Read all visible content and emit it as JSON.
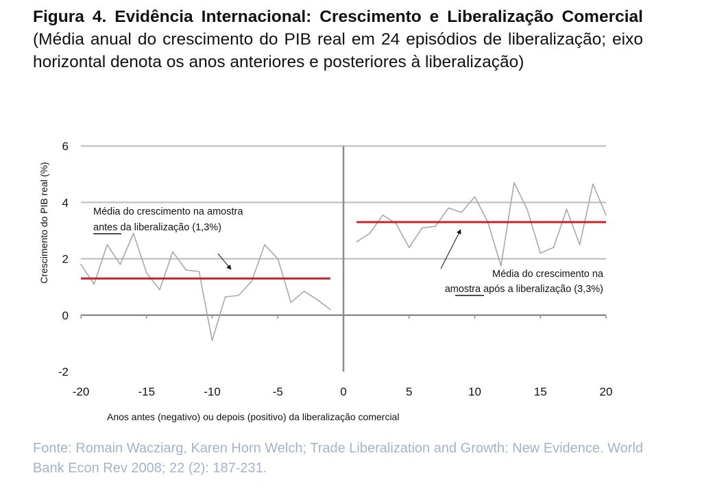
{
  "title": {
    "bold": "Figura 4. Evidência Internacional: Crescimento e Liberalização Comercial",
    "rest": " (Média anual do crescimento do PIB real em 24 episódios de liberalização; eixo horizontal denota os anos anteriores e posteriores à liberalização)"
  },
  "source": "Fonte: Romain Wacziarg, Karen Horn Welch; Trade Liberalization and Growth: New Evidence. World Bank Econ Rev 2008; 22 (2): 187-231.",
  "colors": {
    "series": "#a8a8a8",
    "mean": "#c0252d",
    "grid": "#c6c6c6",
    "axis": "#8c8c8c",
    "source": "#a4b4c6"
  },
  "chart_data": {
    "type": "line",
    "xlabel": "Anos antes (negativo) ou depois (positivo) da liberalização comercial",
    "ylabel": "Crescimento do PIB real (%)",
    "xlim": [
      -20,
      20
    ],
    "ylim": [
      -2,
      6
    ],
    "xticks": [
      -20,
      -15,
      -10,
      -5,
      0,
      5,
      10,
      15,
      20
    ],
    "yticks": [
      -2,
      0,
      2,
      4,
      6
    ],
    "grid": true,
    "series": [
      {
        "x": [
          -20,
          -19,
          -18,
          -17,
          -16,
          -15,
          -14,
          -13,
          -12,
          -11,
          -10,
          -9,
          -8,
          -7,
          -6,
          -5,
          -4,
          -3,
          -2,
          -1
        ],
        "values": [
          1.8,
          1.1,
          2.5,
          1.8,
          2.9,
          1.5,
          0.9,
          2.25,
          1.6,
          1.55,
          -0.9,
          0.65,
          0.7,
          1.2,
          2.5,
          2.0,
          0.45,
          0.85,
          0.55,
          0.2
        ]
      },
      {
        "x": [
          1,
          2,
          3,
          4,
          5,
          6,
          7,
          8,
          9,
          10,
          11,
          12,
          13,
          14,
          15,
          16,
          17,
          18,
          19,
          20
        ],
        "values": [
          2.6,
          2.9,
          3.55,
          3.25,
          2.4,
          3.1,
          3.15,
          3.8,
          3.65,
          4.2,
          3.3,
          1.75,
          4.7,
          3.75,
          2.2,
          2.4,
          3.75,
          2.5,
          4.65,
          3.55
        ]
      }
    ],
    "means": [
      {
        "x": [
          -20,
          -1
        ],
        "value": 1.3
      },
      {
        "x": [
          1,
          20
        ],
        "value": 3.3
      }
    ],
    "annotations": [
      {
        "lines": [
          "Média do crescimento na amostra",
          "antes da liberalização (1,3%)"
        ],
        "underline": "antes"
      },
      {
        "lines": [
          "Média do crescimento na",
          "amostra após a liberalização (3,3%)"
        ],
        "underline": "após"
      }
    ]
  }
}
